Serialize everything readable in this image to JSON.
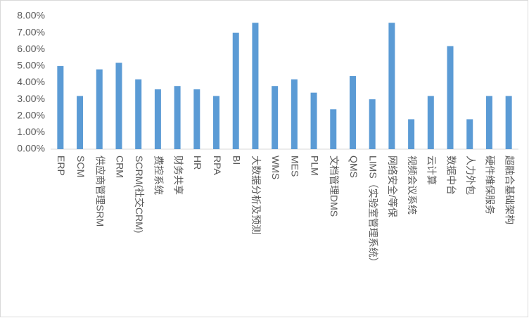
{
  "chart_data": {
    "type": "bar",
    "categories": [
      "ERP",
      "SCM",
      "供应商管理SRM",
      "CRM",
      "SCRM(社交CRM)",
      "费控系统",
      "财务共享",
      "HR",
      "RPA",
      "BI",
      "大数据分析及预测",
      "WMS",
      "MES",
      "PLM",
      "文档管理DMS",
      "QMS",
      "LIMS（实验室管理系统）",
      "网络安全/等保",
      "视频会议系统",
      "云计算",
      "数据中台",
      "人力外包",
      "硬件维保服务",
      "超融合基础架构"
    ],
    "values": [
      5.0,
      3.2,
      4.8,
      5.2,
      4.2,
      3.6,
      3.8,
      3.6,
      3.2,
      7.0,
      7.6,
      3.8,
      4.2,
      3.4,
      2.4,
      4.4,
      3.0,
      7.6,
      1.8,
      3.2,
      6.2,
      1.8,
      3.2,
      3.2
    ],
    "color": "#5b9bd5",
    "ylim": [
      0,
      8
    ],
    "yticks": [
      {
        "value": 0,
        "label": "0.00%"
      },
      {
        "value": 1,
        "label": "1.00%"
      },
      {
        "value": 2,
        "label": "2.00%"
      },
      {
        "value": 3,
        "label": "3.00%"
      },
      {
        "value": 4,
        "label": "4.00%"
      },
      {
        "value": 5,
        "label": "5.00%"
      },
      {
        "value": 6,
        "label": "6.00%"
      },
      {
        "value": 7,
        "label": "7.00%"
      },
      {
        "value": 8,
        "label": "8.00%"
      }
    ]
  }
}
